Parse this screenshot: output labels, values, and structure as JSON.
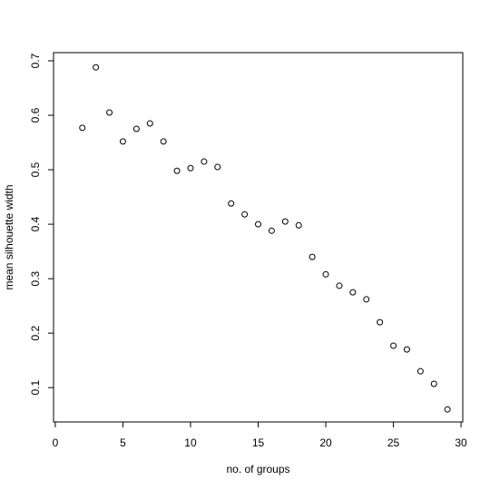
{
  "chart_data": {
    "type": "scatter",
    "x_label": "no. of groups",
    "y_label": "mean silhouette width",
    "x": [
      2,
      3,
      4,
      5,
      6,
      7,
      8,
      9,
      10,
      11,
      12,
      13,
      14,
      15,
      16,
      17,
      18,
      19,
      20,
      21,
      22,
      23,
      24,
      25,
      26,
      27,
      28,
      29
    ],
    "values": [
      0.577,
      0.688,
      0.605,
      0.552,
      0.575,
      0.585,
      0.552,
      0.498,
      0.503,
      0.515,
      0.505,
      0.438,
      0.418,
      0.4,
      0.388,
      0.405,
      0.398,
      0.34,
      0.308,
      0.287,
      0.275,
      0.262,
      0.22,
      0.177,
      0.17,
      0.13,
      0.107,
      0.06
    ],
    "color": "#000000",
    "xlim": [
      -0.13,
      30.13
    ],
    "ylim": [
      0.037,
      0.715
    ],
    "xticks": [
      0,
      5,
      10,
      15,
      20,
      25,
      30
    ],
    "yticks": [
      0.1,
      0.2,
      0.3,
      0.4,
      0.5,
      0.6,
      0.7
    ]
  }
}
